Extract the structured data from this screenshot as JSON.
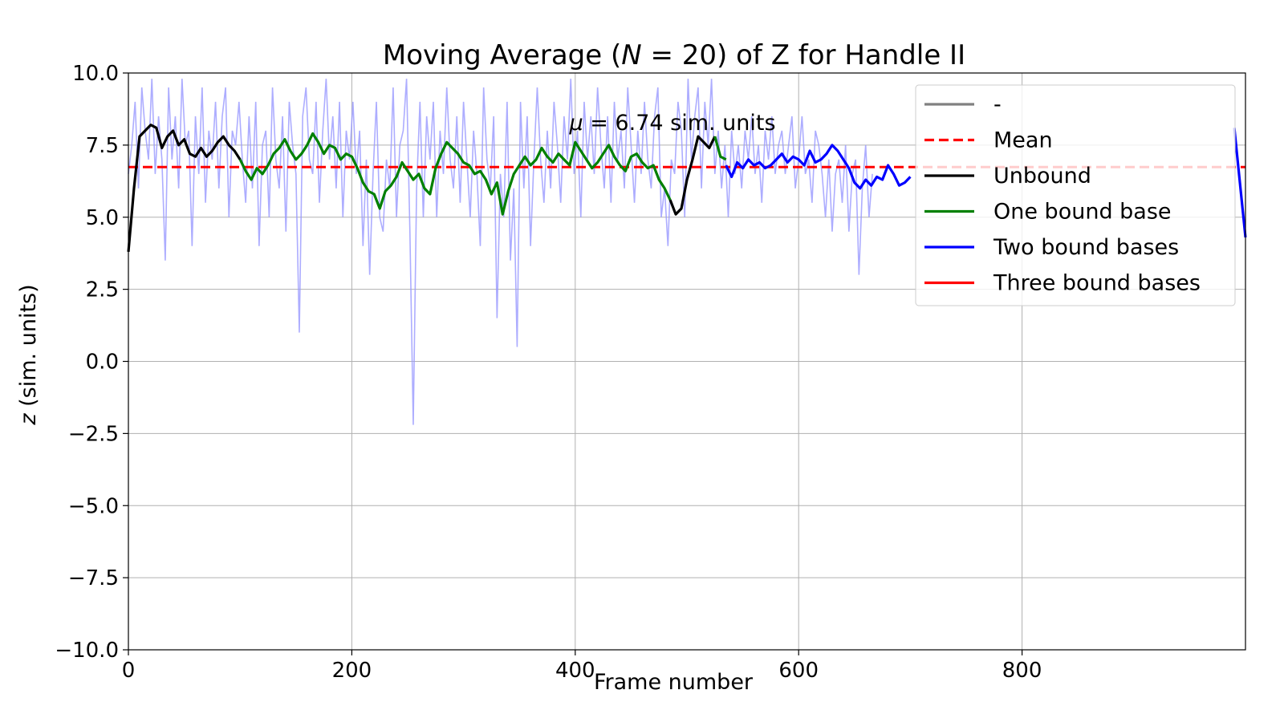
{
  "chart_data": {
    "type": "line",
    "title_prefix": "Moving Average (",
    "title_var": "N",
    "title_suffix": " = 20) of Z for Handle II",
    "xlabel": "Frame number",
    "ylabel_var": "z",
    "ylabel_rest": " (sim. units)",
    "xlim": [
      0,
      1000
    ],
    "ylim": [
      -10,
      10
    ],
    "xticks": [
      "0",
      "200",
      "400",
      "600",
      "800"
    ],
    "xtick_values": [
      0,
      200,
      400,
      600,
      800
    ],
    "yticks": [
      "10.0",
      "7.5",
      "5.0",
      "2.5",
      "0.0",
      "−2.5",
      "−5.0",
      "−7.5",
      "−10.0"
    ],
    "ytick_values": [
      10,
      7.5,
      5,
      2.5,
      0,
      -2.5,
      -5,
      -7.5,
      -10
    ],
    "grid": true,
    "legend_position": "top-right",
    "mean": 6.74,
    "annotation_var": "μ",
    "annotation_rest": " = 6.74 sim. units",
    "raw_color": "#9999ff",
    "legend": [
      {
        "label": "-",
        "color": "#808080",
        "dash": false
      },
      {
        "label": "Mean",
        "color": "#ff0000",
        "dash": true
      },
      {
        "label": "Unbound",
        "color": "#000000",
        "dash": false
      },
      {
        "label": "One bound base",
        "color": "#008000",
        "dash": false
      },
      {
        "label": "Two bound bases",
        "color": "#0000ff",
        "dash": false
      },
      {
        "label": "Three bound bases",
        "color": "#ff0000",
        "dash": false
      }
    ],
    "moving_average_series": [
      {
        "name": "Unbound",
        "color": "#000000",
        "x": [
          0,
          5,
          10,
          15,
          20,
          25,
          30,
          35,
          40,
          45,
          50,
          55,
          60,
          65,
          70,
          75,
          80,
          85,
          90,
          95,
          100
        ],
        "y": [
          3.8,
          6.0,
          7.8,
          8.0,
          8.2,
          8.1,
          7.4,
          7.8,
          8.0,
          7.5,
          7.7,
          7.2,
          7.1,
          7.4,
          7.1,
          7.3,
          7.6,
          7.8,
          7.5,
          7.3,
          7.0
        ]
      },
      {
        "name": "One bound base",
        "color": "#008000",
        "x": [
          100,
          105,
          110,
          115,
          120,
          125,
          130,
          135,
          140,
          145,
          150,
          155,
          160,
          165,
          170,
          175,
          180,
          185,
          190,
          195,
          200,
          205,
          210,
          215,
          220,
          225,
          230,
          235,
          240,
          245,
          250,
          255,
          260,
          265,
          270,
          275,
          280,
          285,
          290,
          295,
          300,
          305,
          310,
          315,
          320,
          325,
          330,
          335,
          340,
          345,
          350,
          355,
          360,
          365,
          370,
          375,
          380,
          385,
          390,
          395,
          400,
          405,
          410,
          415,
          420,
          425,
          430,
          435,
          440,
          445,
          450,
          455,
          460,
          465,
          470,
          475,
          480,
          485
        ],
        "y": [
          7.0,
          6.6,
          6.3,
          6.7,
          6.5,
          6.8,
          7.2,
          7.4,
          7.7,
          7.3,
          7.0,
          7.2,
          7.5,
          7.9,
          7.6,
          7.2,
          7.5,
          7.4,
          7.0,
          7.2,
          7.1,
          6.7,
          6.2,
          5.9,
          5.8,
          5.3,
          5.9,
          6.1,
          6.4,
          6.9,
          6.6,
          6.3,
          6.5,
          6.0,
          5.8,
          6.7,
          7.2,
          7.6,
          7.4,
          7.2,
          6.9,
          6.8,
          6.5,
          6.6,
          6.3,
          5.8,
          6.2,
          5.1,
          5.9,
          6.5,
          6.8,
          7.1,
          6.8,
          7.0,
          7.4,
          7.1,
          6.9,
          7.2,
          7.0,
          6.8,
          7.6,
          7.3,
          7.0,
          6.7,
          6.9,
          7.2,
          7.5,
          7.1,
          6.8,
          6.6,
          7.1,
          7.2,
          6.9,
          6.7,
          6.8,
          6.3,
          6.0,
          5.6
        ]
      },
      {
        "name": "Unbound",
        "color": "#000000",
        "x": [
          485,
          490,
          495,
          500,
          505,
          510,
          515,
          520,
          525
        ],
        "y": [
          5.6,
          5.1,
          5.3,
          6.3,
          7.0,
          7.8,
          7.6,
          7.4,
          7.8
        ]
      },
      {
        "name": "One bound base",
        "color": "#008000",
        "x": [
          525,
          530,
          535
        ],
        "y": [
          7.8,
          7.1,
          7.0
        ]
      },
      {
        "name": "Two bound bases",
        "color": "#0000ff",
        "x": [
          535,
          540,
          545,
          550,
          555,
          560,
          565,
          570,
          575,
          580,
          585,
          590,
          595,
          600,
          605,
          610,
          615,
          620,
          625,
          630,
          635,
          640,
          645,
          650,
          655,
          660,
          665,
          670,
          675,
          680,
          685,
          690,
          695,
          700
        ],
        "y": [
          6.8,
          6.4,
          6.9,
          6.7,
          7.0,
          6.8,
          6.9,
          6.7,
          6.8,
          7.0,
          7.2,
          6.9,
          7.1,
          7.0,
          6.8,
          7.3,
          6.9,
          7.0,
          7.2,
          7.5,
          7.3,
          7.0,
          6.7,
          6.2,
          6.0,
          6.3,
          6.1,
          6.4,
          6.3,
          6.8,
          6.5,
          6.1,
          6.2,
          6.4
        ]
      },
      {
        "name": "Two bound bases",
        "color": "#0000ff",
        "x": [
          990,
          1000
        ],
        "y": [
          8.1,
          4.3
        ]
      }
    ],
    "raw_x": [
      0,
      3,
      6,
      9,
      12,
      15,
      18,
      21,
      24,
      27,
      30,
      33,
      36,
      39,
      42,
      45,
      48,
      51,
      54,
      57,
      60,
      63,
      66,
      69,
      72,
      75,
      78,
      81,
      84,
      87,
      90,
      93,
      96,
      99,
      102,
      105,
      108,
      111,
      114,
      117,
      120,
      123,
      126,
      129,
      132,
      135,
      138,
      141,
      144,
      147,
      150,
      153,
      156,
      159,
      162,
      165,
      168,
      171,
      174,
      177,
      180,
      183,
      186,
      189,
      192,
      195,
      198,
      201,
      204,
      207,
      210,
      213,
      216,
      219,
      222,
      225,
      228,
      231,
      234,
      237,
      240,
      243,
      246,
      249,
      252,
      255,
      258,
      261,
      264,
      267,
      270,
      273,
      276,
      279,
      282,
      285,
      288,
      291,
      294,
      297,
      300,
      303,
      306,
      309,
      312,
      315,
      318,
      321,
      324,
      327,
      330,
      333,
      336,
      339,
      342,
      345,
      348,
      351,
      354,
      357,
      360,
      363,
      366,
      369,
      372,
      375,
      378,
      381,
      384,
      387,
      390,
      393,
      396,
      399,
      402,
      405,
      408,
      411,
      414,
      417,
      420,
      423,
      426,
      429,
      432,
      435,
      438,
      441,
      444,
      447,
      450,
      453,
      456,
      459,
      462,
      465,
      468,
      471,
      474,
      477,
      480,
      483,
      486,
      489,
      492,
      495,
      498,
      501,
      504,
      507,
      510,
      513,
      516,
      519,
      522,
      525,
      528,
      531,
      534,
      537,
      540,
      543,
      546,
      549,
      552,
      555,
      558,
      561,
      564,
      567,
      570,
      573,
      576,
      579,
      582,
      585,
      588,
      591,
      594,
      597,
      600,
      603,
      606,
      609,
      612,
      615,
      618,
      621,
      624,
      627,
      630,
      633,
      636,
      639,
      642,
      645,
      648,
      651,
      654,
      657,
      660,
      663,
      666,
      669,
      672,
      675,
      678,
      681,
      684,
      687,
      690,
      693,
      696,
      699
    ],
    "raw_y": [
      6.5,
      7.5,
      9.0,
      6.0,
      9.5,
      8.0,
      7.0,
      9.8,
      6.5,
      8.5,
      7.0,
      3.5,
      9.5,
      7.0,
      8.5,
      6.0,
      9.8,
      7.5,
      8.0,
      4.0,
      8.5,
      6.5,
      9.5,
      5.5,
      8.0,
      7.0,
      9.0,
      6.0,
      8.5,
      9.5,
      5.0,
      8.0,
      7.5,
      9.0,
      7.0,
      5.5,
      8.5,
      6.0,
      9.0,
      4.0,
      7.5,
      8.0,
      5.0,
      9.5,
      7.0,
      6.0,
      8.5,
      4.5,
      9.0,
      7.5,
      6.5,
      1.0,
      8.5,
      9.5,
      7.0,
      6.5,
      9.0,
      5.5,
      8.0,
      9.8,
      7.0,
      8.5,
      6.0,
      9.0,
      5.0,
      8.0,
      7.0,
      9.0,
      6.5,
      8.0,
      4.0,
      7.0,
      3.0,
      6.5,
      9.0,
      5.0,
      4.5,
      7.0,
      6.0,
      9.5,
      5.0,
      7.5,
      8.0,
      9.8,
      4.5,
      -2.2,
      6.0,
      9.0,
      5.0,
      8.5,
      7.0,
      9.0,
      5.0,
      8.0,
      6.5,
      9.5,
      7.0,
      6.0,
      8.5,
      5.5,
      9.0,
      7.0,
      5.0,
      8.0,
      6.5,
      4.0,
      9.5,
      7.0,
      6.0,
      8.5,
      1.5,
      6.5,
      5.0,
      9.0,
      3.5,
      6.0,
      0.5,
      9.0,
      6.0,
      8.5,
      4.0,
      7.0,
      9.5,
      7.0,
      5.5,
      8.0,
      6.0,
      9.0,
      7.5,
      5.5,
      8.5,
      7.0,
      9.8,
      6.5,
      8.0,
      5.0,
      9.0,
      7.0,
      8.5,
      6.5,
      9.5,
      7.5,
      6.0,
      8.5,
      5.5,
      9.0,
      7.0,
      8.0,
      6.0,
      9.5,
      7.5,
      5.5,
      8.0,
      6.5,
      9.0,
      7.0,
      6.0,
      8.5,
      9.5,
      5.0,
      6.0,
      4.0,
      7.0,
      6.5,
      9.0,
      8.0,
      5.0,
      9.8,
      7.0,
      8.5,
      9.5,
      6.0,
      9.0,
      7.5,
      9.8,
      6.5,
      8.0,
      6.0,
      7.5,
      5.0,
      8.0,
      6.5,
      7.5,
      6.0,
      8.0,
      7.0,
      8.5,
      6.5,
      7.5,
      5.5,
      8.0,
      7.0,
      8.5,
      6.5,
      7.5,
      8.0,
      6.5,
      7.5,
      8.5,
      6.0,
      7.0,
      8.5,
      6.5,
      7.0,
      5.5,
      8.0,
      7.5,
      6.5,
      5.0,
      7.0,
      4.5,
      6.5,
      7.0,
      5.5,
      7.5,
      4.5,
      6.5,
      7.0,
      3.0,
      6.0,
      7.5,
      5.0,
      6.5
    ]
  }
}
